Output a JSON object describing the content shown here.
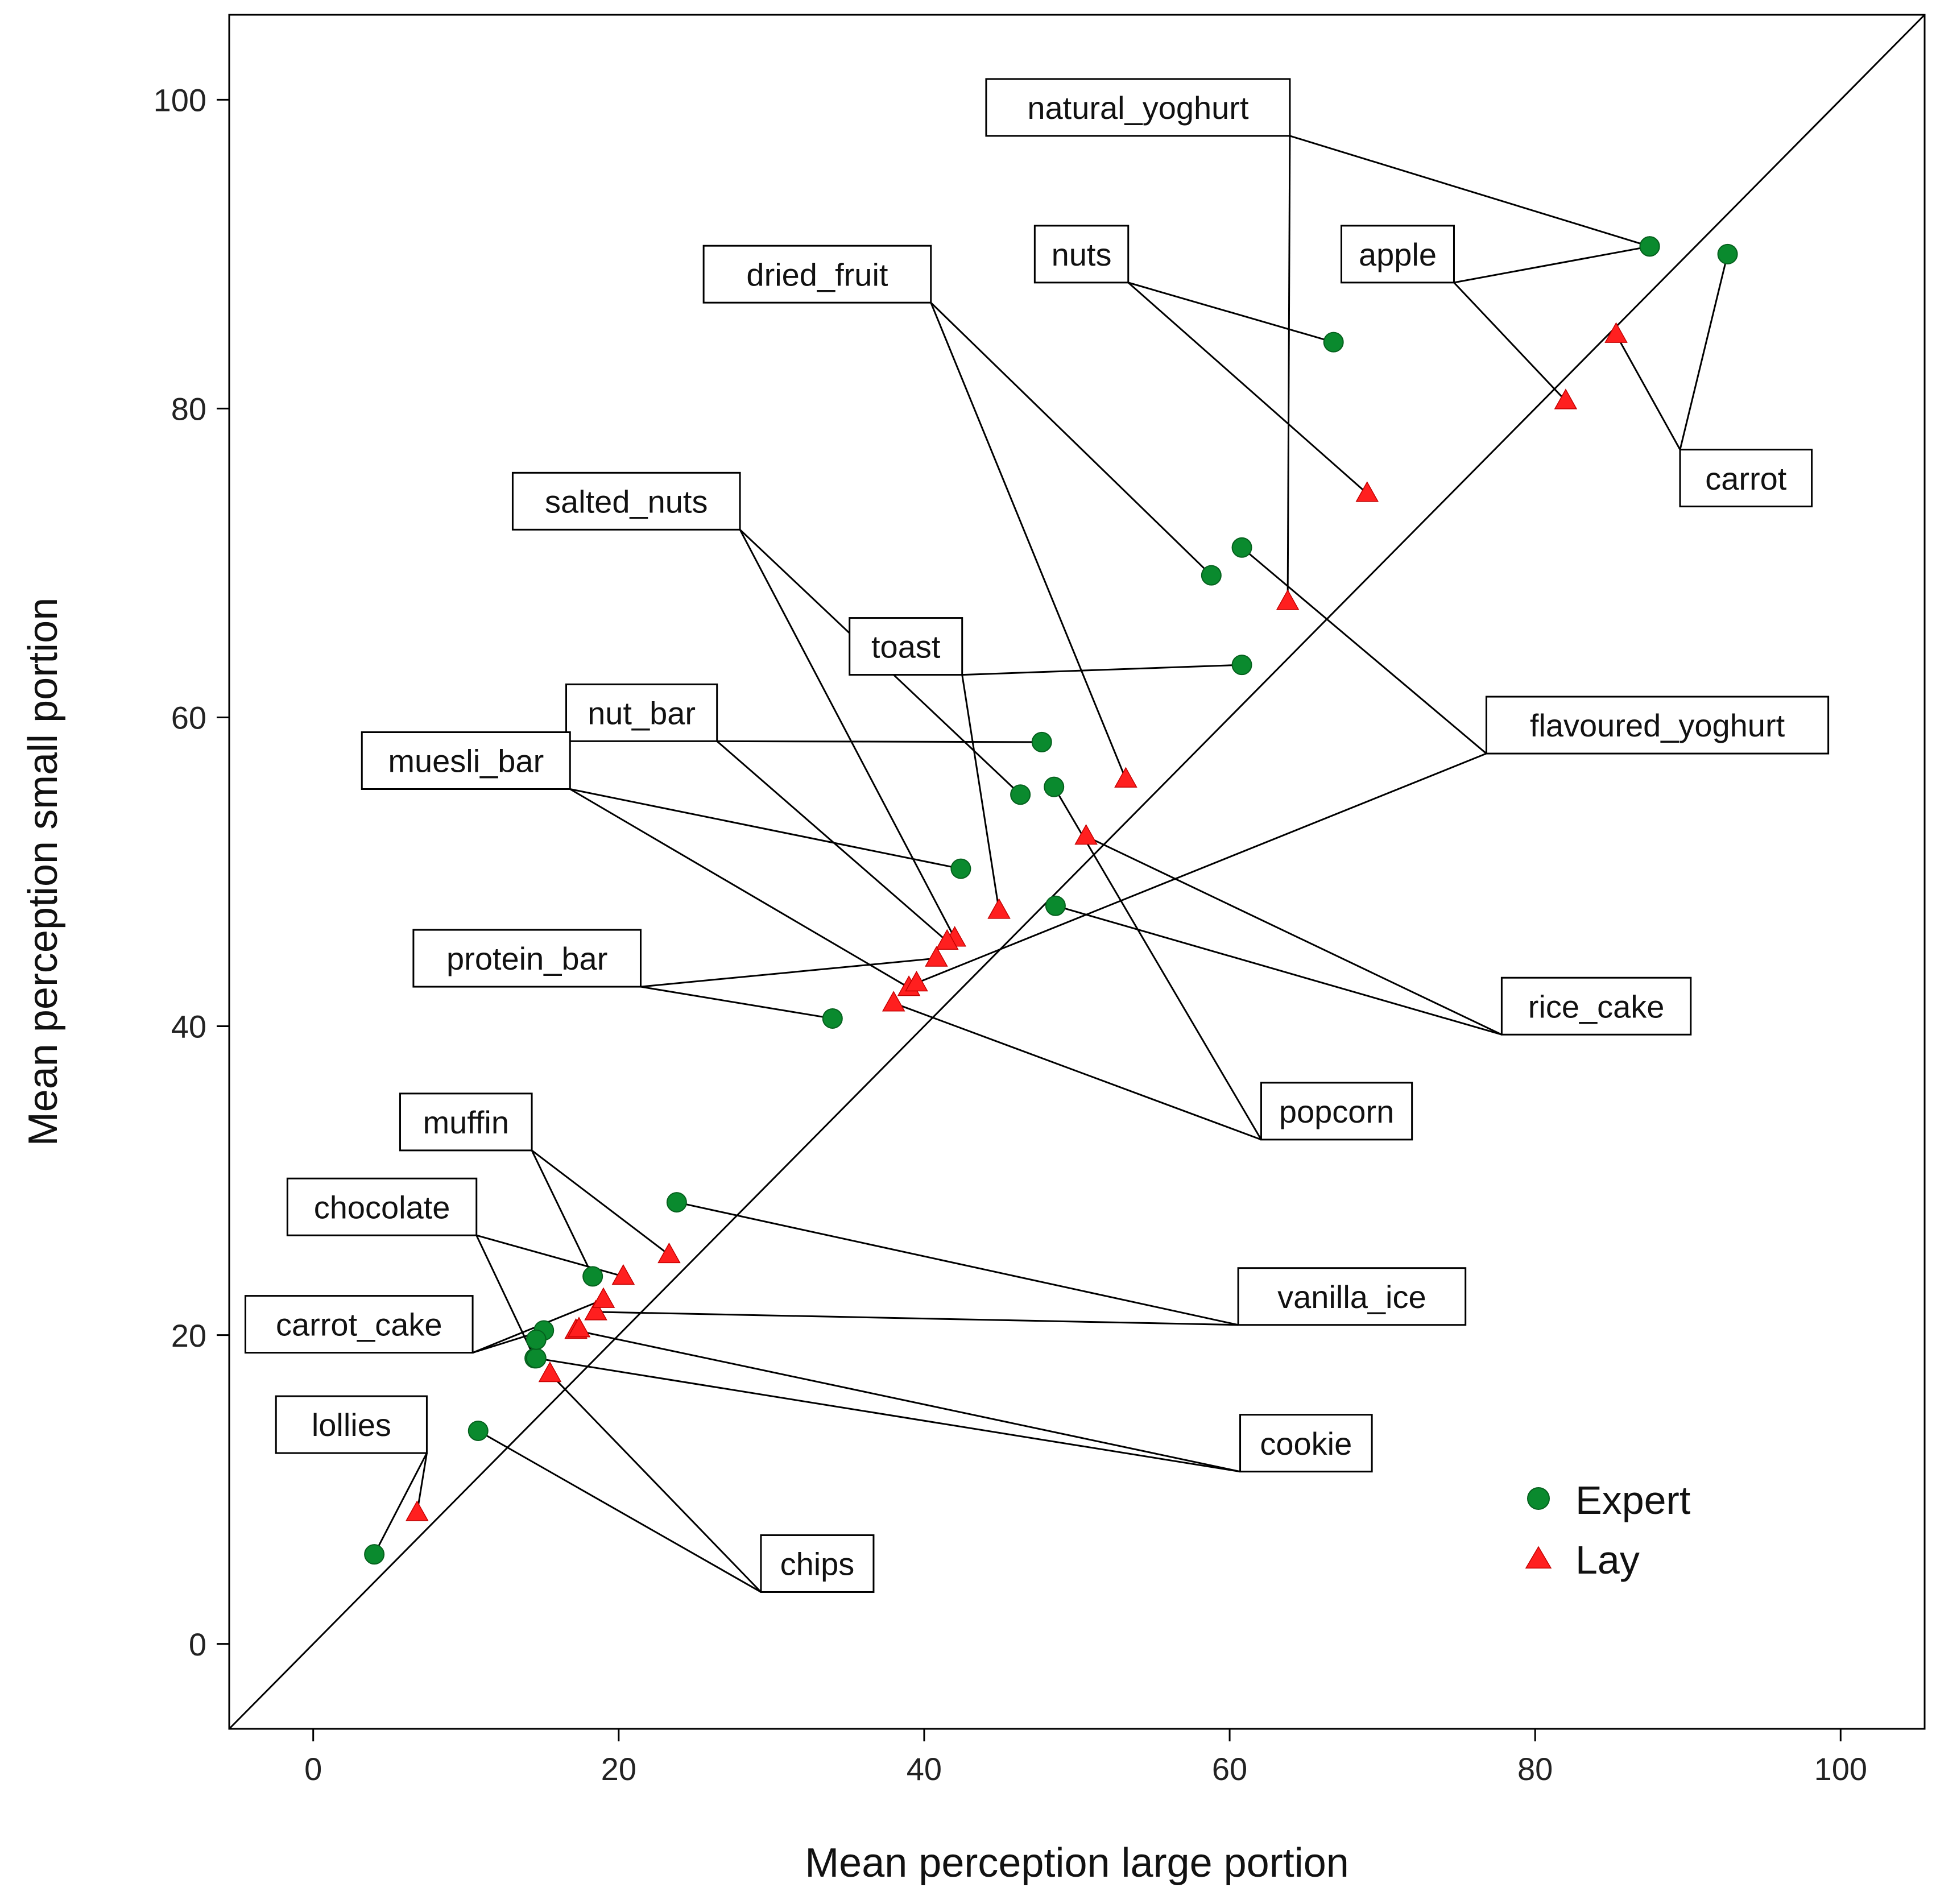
{
  "chart_data": {
    "type": "scatter",
    "title": "",
    "xlabel": "Mean perception large portion",
    "ylabel": "Mean perception small portion",
    "xlim": [
      -5.5,
      105.5
    ],
    "ylim": [
      -5.5,
      105.5
    ],
    "x_ticks": [
      0,
      20,
      40,
      60,
      80,
      100
    ],
    "y_ticks": [
      0,
      20,
      40,
      60,
      80,
      100
    ],
    "x_tick_labels": [
      "0",
      "20",
      "40",
      "60",
      "80",
      "100"
    ],
    "y_tick_labels": [
      "0",
      "20",
      "40",
      "60",
      "80",
      "100"
    ],
    "reference_line": "y = x diagonal",
    "grid": false,
    "legend_position": "bottom-right",
    "series": [
      {
        "name": "Expert",
        "marker": "circle",
        "color": "#0a8a2e"
      },
      {
        "name": "Lay",
        "marker": "triangle",
        "color": "#ff1f1f"
      }
    ],
    "foods": [
      {
        "label": "natural_yoghurt",
        "label_x": 54.0,
        "label_y": 99.5,
        "anchor": "bottom",
        "expert": [
          87.5,
          90.5
        ],
        "lay": [
          63.8,
          67.5
        ]
      },
      {
        "label": "nuts",
        "label_x": 50.3,
        "label_y": 90.0,
        "anchor": "bottom",
        "expert": [
          66.8,
          84.3
        ],
        "lay": [
          69.0,
          74.5
        ]
      },
      {
        "label": "apple",
        "label_x": 71.0,
        "label_y": 90.0,
        "anchor": "right",
        "expert": [
          87.5,
          90.5
        ],
        "lay": [
          82.0,
          80.5
        ]
      },
      {
        "label": "carrot",
        "label_x": 93.8,
        "label_y": 75.5,
        "anchor": "top",
        "expert": [
          92.6,
          90.0
        ],
        "lay": [
          85.3,
          84.8
        ]
      },
      {
        "label": "dried_fruit",
        "label_x": 33.0,
        "label_y": 88.7,
        "anchor": "bottom",
        "expert": [
          58.8,
          69.2
        ],
        "lay": [
          53.2,
          56.0
        ]
      },
      {
        "label": "salted_nuts",
        "label_x": 20.5,
        "label_y": 74.0,
        "anchor": "bottom",
        "expert": [
          46.3,
          55.0
        ],
        "lay": [
          42.0,
          45.7
        ]
      },
      {
        "label": "toast",
        "label_x": 38.8,
        "label_y": 64.6,
        "anchor": "right",
        "expert": [
          60.8,
          63.4
        ],
        "lay": [
          44.9,
          47.5
        ]
      },
      {
        "label": "nut_bar",
        "label_x": 21.5,
        "label_y": 60.3,
        "anchor": "right",
        "expert": [
          47.7,
          58.4
        ],
        "lay": [
          41.5,
          45.5
        ]
      },
      {
        "label": "muesli_bar",
        "label_x": 10.0,
        "label_y": 57.2,
        "anchor": "right",
        "expert": [
          42.4,
          50.2
        ],
        "lay": [
          39.0,
          42.5
        ]
      },
      {
        "label": "flavoured_yoghurt",
        "label_x": 88.0,
        "label_y": 59.5,
        "anchor": "left",
        "expert": [
          60.8,
          71.0
        ],
        "lay": [
          39.5,
          42.8
        ]
      },
      {
        "label": "rice_cake",
        "label_x": 84.0,
        "label_y": 41.3,
        "anchor": "left",
        "expert": [
          48.6,
          47.8
        ],
        "lay": [
          50.6,
          52.3
        ]
      },
      {
        "label": "protein_bar",
        "label_x": 14.0,
        "label_y": 44.4,
        "anchor": "right",
        "expert": [
          34.0,
          40.5
        ],
        "lay": [
          40.8,
          44.4
        ]
      },
      {
        "label": "popcorn",
        "label_x": 67.0,
        "label_y": 34.5,
        "anchor": "left",
        "expert": [
          48.5,
          55.5
        ],
        "lay": [
          38.0,
          41.5
        ]
      },
      {
        "label": "muffin",
        "label_x": 10.0,
        "label_y": 33.8,
        "anchor": "right",
        "expert": [
          18.3,
          23.8
        ],
        "lay": [
          23.3,
          25.2
        ]
      },
      {
        "label": "chocolate",
        "label_x": 4.5,
        "label_y": 28.3,
        "anchor": "right",
        "expert": [
          14.5,
          18.5
        ],
        "lay": [
          20.3,
          23.8
        ]
      },
      {
        "label": "vanilla_ice",
        "label_x": 68.0,
        "label_y": 22.5,
        "anchor": "left",
        "expert": [
          23.8,
          28.6
        ],
        "lay": [
          18.5,
          21.5
        ]
      },
      {
        "label": "carrot_cake",
        "label_x": 3.0,
        "label_y": 20.7,
        "anchor": "right",
        "expert": [
          15.1,
          20.3
        ],
        "lay": [
          19.0,
          22.3
        ]
      },
      {
        "label": "cookie",
        "label_x": 65.0,
        "label_y": 13.0,
        "anchor": "left",
        "expert": [
          14.6,
          18.5
        ],
        "lay": [
          17.2,
          20.3
        ]
      },
      {
        "label": "lollies",
        "label_x": 2.5,
        "label_y": 14.2,
        "anchor": "right",
        "expert": [
          4.0,
          5.8
        ],
        "lay": [
          6.8,
          8.5
        ]
      },
      {
        "label": "chips",
        "label_x": 33.0,
        "label_y": 5.2,
        "anchor": "left",
        "expert": [
          10.8,
          13.8
        ],
        "lay": [
          15.5,
          17.5
        ]
      }
    ],
    "extra_points": [
      {
        "series": "Expert",
        "x": 14.6,
        "y": 19.7
      },
      {
        "series": "Lay",
        "x": 17.4,
        "y": 20.4
      }
    ],
    "legend": [
      {
        "label": "Expert",
        "marker": "circle",
        "color": "#0a8a2e"
      },
      {
        "label": "Lay",
        "marker": "triangle",
        "color": "#ff1f1f"
      }
    ]
  }
}
